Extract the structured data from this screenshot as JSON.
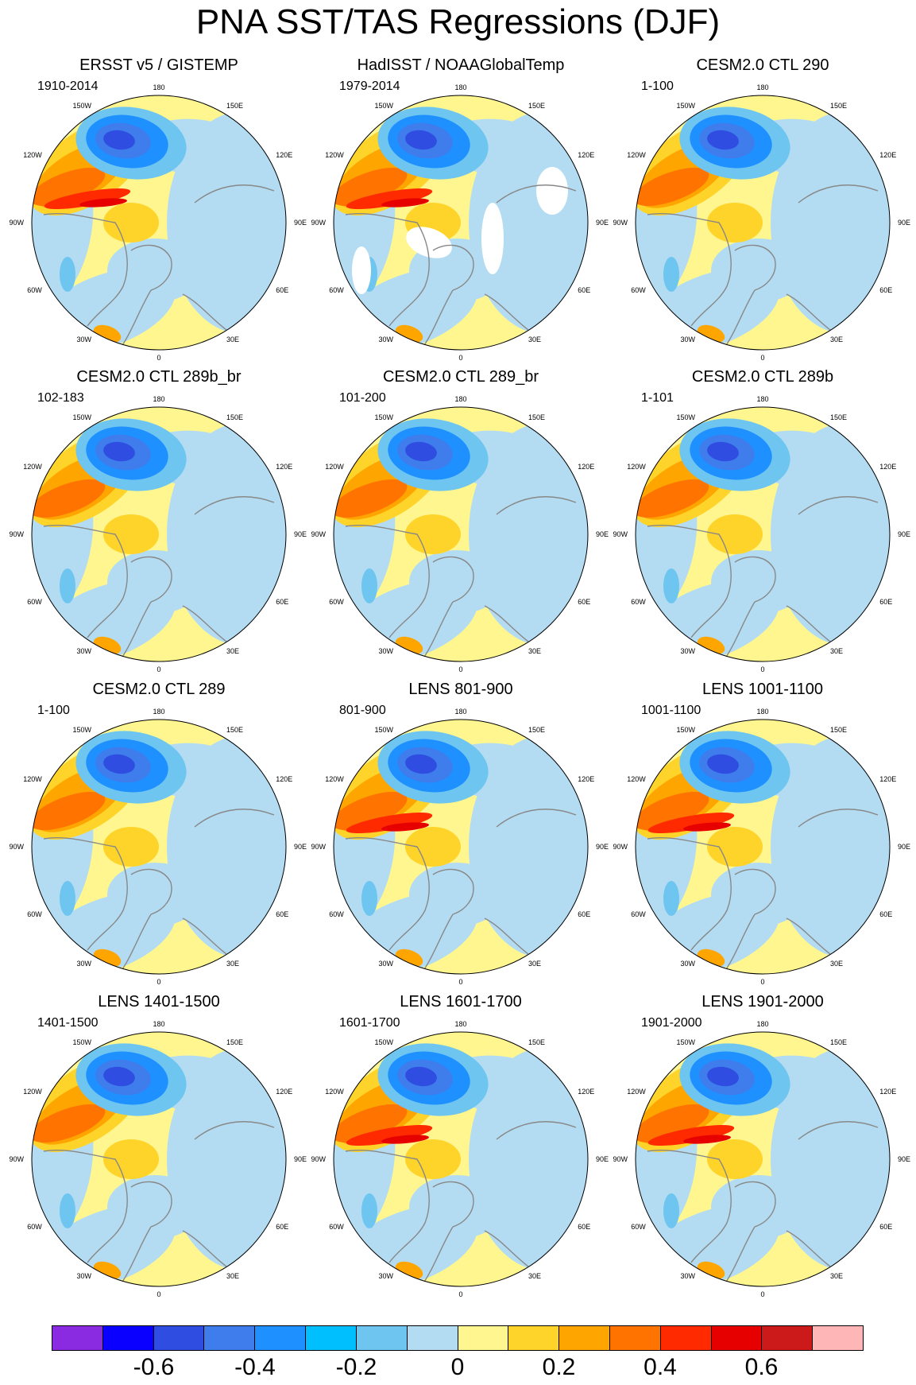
{
  "title": "PNA SST/TAS Regressions (DJF)",
  "lon_labels": {
    "deg180": "180",
    "deg150w": "150W",
    "deg150e": "150E",
    "deg120w": "120W",
    "deg120e": "120E",
    "deg90w": "90W",
    "deg90e": "90E",
    "deg60w": "60W",
    "deg60e": "60E",
    "deg30w": "30W",
    "deg30e": "30E",
    "deg0": "0"
  },
  "panels": [
    {
      "title": "ERSST v5 / GISTEMP",
      "period": "1910-2014",
      "warm_strength": 3,
      "has_missing": true,
      "has_white_patches": false
    },
    {
      "title": "HadISST / NOAAGlobalTemp",
      "period": "1979-2014",
      "warm_strength": 3,
      "has_missing": true,
      "has_white_patches": true
    },
    {
      "title": "CESM2.0 CTL 290",
      "period": "1-100",
      "warm_strength": 2,
      "has_missing": false,
      "has_white_patches": false
    },
    {
      "title": "CESM2.0 CTL 289b_br",
      "period": "102-183",
      "warm_strength": 2,
      "has_missing": false,
      "has_white_patches": false
    },
    {
      "title": "CESM2.0 CTL 289_br",
      "period": "101-200",
      "warm_strength": 2,
      "has_missing": false,
      "has_white_patches": false
    },
    {
      "title": "CESM2.0 CTL 289b",
      "period": "1-101",
      "warm_strength": 2,
      "has_missing": false,
      "has_white_patches": false
    },
    {
      "title": "CESM2.0 CTL 289",
      "period": "1-100",
      "warm_strength": 2,
      "has_missing": false,
      "has_white_patches": false
    },
    {
      "title": "LENS 801-900",
      "period": "801-900",
      "warm_strength": 3,
      "has_missing": false,
      "has_white_patches": false
    },
    {
      "title": "LENS 1001-1100",
      "period": "1001-1100",
      "warm_strength": 3,
      "has_missing": false,
      "has_white_patches": false
    },
    {
      "title": "LENS 1401-1500",
      "period": "1401-1500",
      "warm_strength": 2,
      "has_missing": false,
      "has_white_patches": false
    },
    {
      "title": "LENS 1601-1700",
      "period": "1601-1700",
      "warm_strength": 3,
      "has_missing": false,
      "has_white_patches": false
    },
    {
      "title": "LENS 1901-2000",
      "period": "1901-2000",
      "warm_strength": 3,
      "has_missing": false,
      "has_white_patches": false
    }
  ],
  "colorbar": {
    "colors": [
      "#8a2be2",
      "#0a00ff",
      "#2f4de0",
      "#3f7cec",
      "#1e90ff",
      "#00bfff",
      "#6ec6f0",
      "#b3dcf2",
      "#fff68f",
      "#ffd42a",
      "#ffa500",
      "#ff7300",
      "#ff2a00",
      "#e60000",
      "#cc1a1a",
      "#ffb6b6"
    ],
    "label_values": [
      -0.6,
      -0.4,
      -0.2,
      0,
      0.2,
      0.4,
      0.6
    ],
    "labels": [
      "-0.6",
      "-0.4",
      "-0.2",
      "0",
      "0.2",
      "0.4",
      "0.6"
    ]
  }
}
